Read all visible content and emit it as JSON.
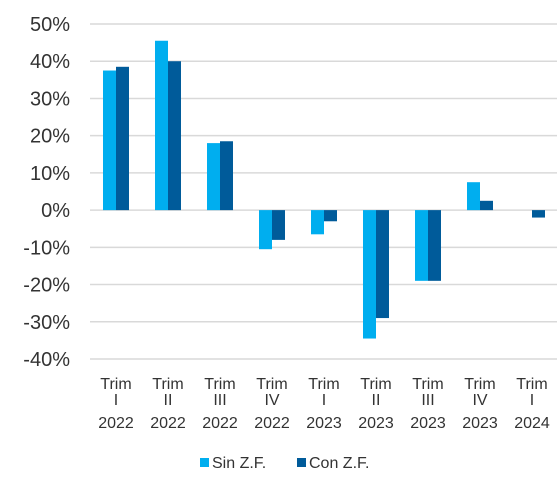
{
  "chart_data": {
    "type": "bar",
    "title": "",
    "xlabel": "",
    "ylabel": "",
    "ylim": [
      -40,
      50
    ],
    "y_ticks": [
      -40,
      -30,
      -20,
      -10,
      0,
      10,
      20,
      30,
      40,
      50
    ],
    "y_tick_labels": [
      "-40%",
      "-30%",
      "-20%",
      "-10%",
      "0%",
      "10%",
      "20%",
      "30%",
      "40%",
      "50%"
    ],
    "grid": true,
    "legend_position": "bottom-center",
    "categories": [
      [
        "Trim",
        "I",
        "2022"
      ],
      [
        "Trim",
        "II",
        "2022"
      ],
      [
        "Trim",
        "III",
        "2022"
      ],
      [
        "Trim",
        "IV",
        "2022"
      ],
      [
        "Trim",
        "I",
        "2023"
      ],
      [
        "Trim",
        "II",
        "2023"
      ],
      [
        "Trim",
        "III",
        "2023"
      ],
      [
        "Trim",
        "IV",
        "2023"
      ],
      [
        "Trim",
        "I",
        "2024"
      ]
    ],
    "series": [
      {
        "name": "Sin Z.F.",
        "color": "#00aeef",
        "values": [
          37.5,
          45.5,
          18.0,
          -10.5,
          -6.5,
          -34.5,
          -19.0,
          7.5,
          null
        ]
      },
      {
        "name": "Con Z.F.",
        "color": "#005b9a",
        "values": [
          38.5,
          40.0,
          18.5,
          -8.0,
          -3.0,
          -29.0,
          -19.0,
          2.5,
          -2.0
        ]
      }
    ]
  }
}
